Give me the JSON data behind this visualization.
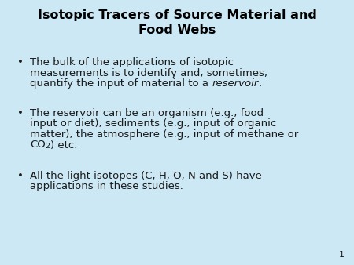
{
  "title_line1": "Isotopic Tracers of Source Material and",
  "title_line2": "Food Webs",
  "background_color": "#cce8f4",
  "text_color": "#1a1a1a",
  "title_color": "#000000",
  "body_fontsize": 9.5,
  "title_fontsize": 11.5,
  "page_num_fontsize": 8,
  "bullet1_l1": "The bulk of the applications of isotopic",
  "bullet1_l2": "measurements is to identify and, sometimes,",
  "bullet1_l3_pre": "quantify the input of material to a ",
  "bullet1_l3_italic": "reservoir",
  "bullet1_l3_post": ".",
  "bullet2_l1": "The reservoir can be an organism (e.g., food",
  "bullet2_l2": "input or diet), sediments (e.g., input of organic",
  "bullet2_l3": "matter), the atmosphere (e.g., input of methane or",
  "bullet2_l4_pre": "CO",
  "bullet2_l4_sub": "2",
  "bullet2_l4_post": ") etc.",
  "bullet3_l1": "All the light isotopes (C, H, O, N and S) have",
  "bullet3_l2": "applications in these studies.",
  "page_number": "1"
}
